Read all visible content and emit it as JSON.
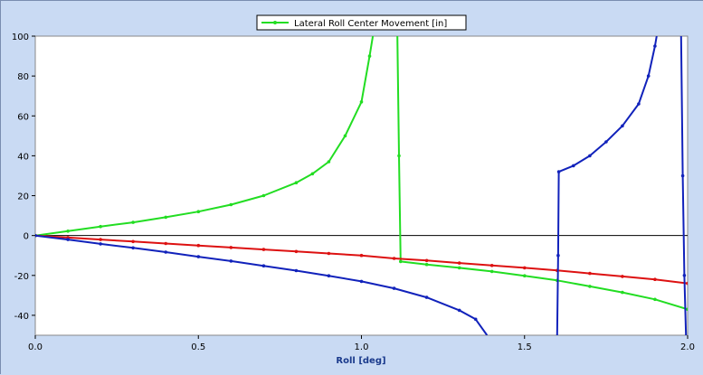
{
  "chart_data": {
    "type": "line",
    "title": "",
    "xlabel": "Roll [deg]",
    "ylabel": "",
    "xlim": [
      0,
      2
    ],
    "ylim": [
      -50,
      100
    ],
    "x_ticks": [
      "0.0",
      "0.5",
      "1.0",
      "1.5",
      "2.0"
    ],
    "y_ticks": [
      "-40",
      "-20",
      "0",
      "20",
      "40",
      "60",
      "80",
      "100"
    ],
    "x_tick_values": [
      0,
      0.5,
      1,
      1.5,
      2
    ],
    "y_tick_values": [
      -40,
      -20,
      0,
      20,
      40,
      60,
      80,
      100
    ],
    "grid": false,
    "zero_line": true,
    "legend": {
      "position": "top-center",
      "entries": [
        "Lateral Roll Center Movement [in]"
      ]
    },
    "series": [
      {
        "name": "Lateral Roll Center Movement [in]",
        "color": "#22dd22",
        "segments": [
          [
            [
              0,
              0
            ],
            [
              0.1,
              2.2
            ],
            [
              0.2,
              4.5
            ],
            [
              0.3,
              6.6
            ],
            [
              0.4,
              9.2
            ],
            [
              0.5,
              12.0
            ],
            [
              0.6,
              15.5
            ],
            [
              0.7,
              20.0
            ],
            [
              0.8,
              26.5
            ],
            [
              0.85,
              31.0
            ],
            [
              0.9,
              37.0
            ],
            [
              0.95,
              50.0
            ],
            [
              1.0,
              67.0
            ],
            [
              1.025,
              90.0
            ],
            [
              1.035,
              100.0
            ]
          ],
          [
            [
              1.11,
              100.0
            ],
            [
              1.115,
              40.0
            ],
            [
              1.12,
              -13.0
            ],
            [
              1.2,
              -14.5
            ],
            [
              1.3,
              -16.2
            ],
            [
              1.4,
              -18.0
            ],
            [
              1.5,
              -20.2
            ],
            [
              1.6,
              -22.5
            ],
            [
              1.7,
              -25.5
            ],
            [
              1.8,
              -28.5
            ],
            [
              1.9,
              -32.0
            ],
            [
              2.0,
              -37.0
            ]
          ]
        ]
      },
      {
        "name": "",
        "color": "#dd1111",
        "segments": [
          [
            [
              0,
              0
            ],
            [
              0.1,
              -1.0
            ],
            [
              0.2,
              -2.0
            ],
            [
              0.3,
              -3.0
            ],
            [
              0.4,
              -4.0
            ],
            [
              0.5,
              -5.0
            ],
            [
              0.6,
              -6.0
            ],
            [
              0.7,
              -7.0
            ],
            [
              0.8,
              -8.0
            ],
            [
              0.9,
              -9.0
            ],
            [
              1.0,
              -10.0
            ],
            [
              1.1,
              -11.5
            ],
            [
              1.2,
              -12.5
            ],
            [
              1.3,
              -13.8
            ],
            [
              1.4,
              -15.0
            ],
            [
              1.5,
              -16.2
            ],
            [
              1.6,
              -17.5
            ],
            [
              1.7,
              -19.0
            ],
            [
              1.8,
              -20.5
            ],
            [
              1.9,
              -22.0
            ],
            [
              2.0,
              -24.0
            ]
          ]
        ]
      },
      {
        "name": "",
        "color": "#1122bb",
        "segments": [
          [
            [
              0,
              0
            ],
            [
              0.1,
              -2.0
            ],
            [
              0.2,
              -4.2
            ],
            [
              0.3,
              -6.2
            ],
            [
              0.4,
              -8.3
            ],
            [
              0.5,
              -10.6
            ],
            [
              0.6,
              -12.8
            ],
            [
              0.7,
              -15.2
            ],
            [
              0.8,
              -17.6
            ],
            [
              0.9,
              -20.2
            ],
            [
              1.0,
              -23.0
            ],
            [
              1.1,
              -26.5
            ],
            [
              1.2,
              -31.0
            ],
            [
              1.3,
              -37.5
            ],
            [
              1.35,
              -42.0
            ],
            [
              1.385,
              -50.0
            ]
          ],
          [
            [
              1.6,
              -50.0
            ],
            [
              1.603,
              -10.0
            ],
            [
              1.605,
              32.0
            ],
            [
              1.65,
              35.0
            ],
            [
              1.7,
              40.0
            ],
            [
              1.75,
              47.0
            ],
            [
              1.8,
              55.0
            ],
            [
              1.85,
              66.0
            ],
            [
              1.88,
              80.0
            ],
            [
              1.9,
              95.0
            ],
            [
              1.905,
              100.0
            ]
          ],
          [
            [
              1.98,
              100.0
            ],
            [
              1.985,
              30.0
            ],
            [
              1.99,
              -20.0
            ],
            [
              1.995,
              -50.0
            ]
          ]
        ]
      }
    ]
  }
}
